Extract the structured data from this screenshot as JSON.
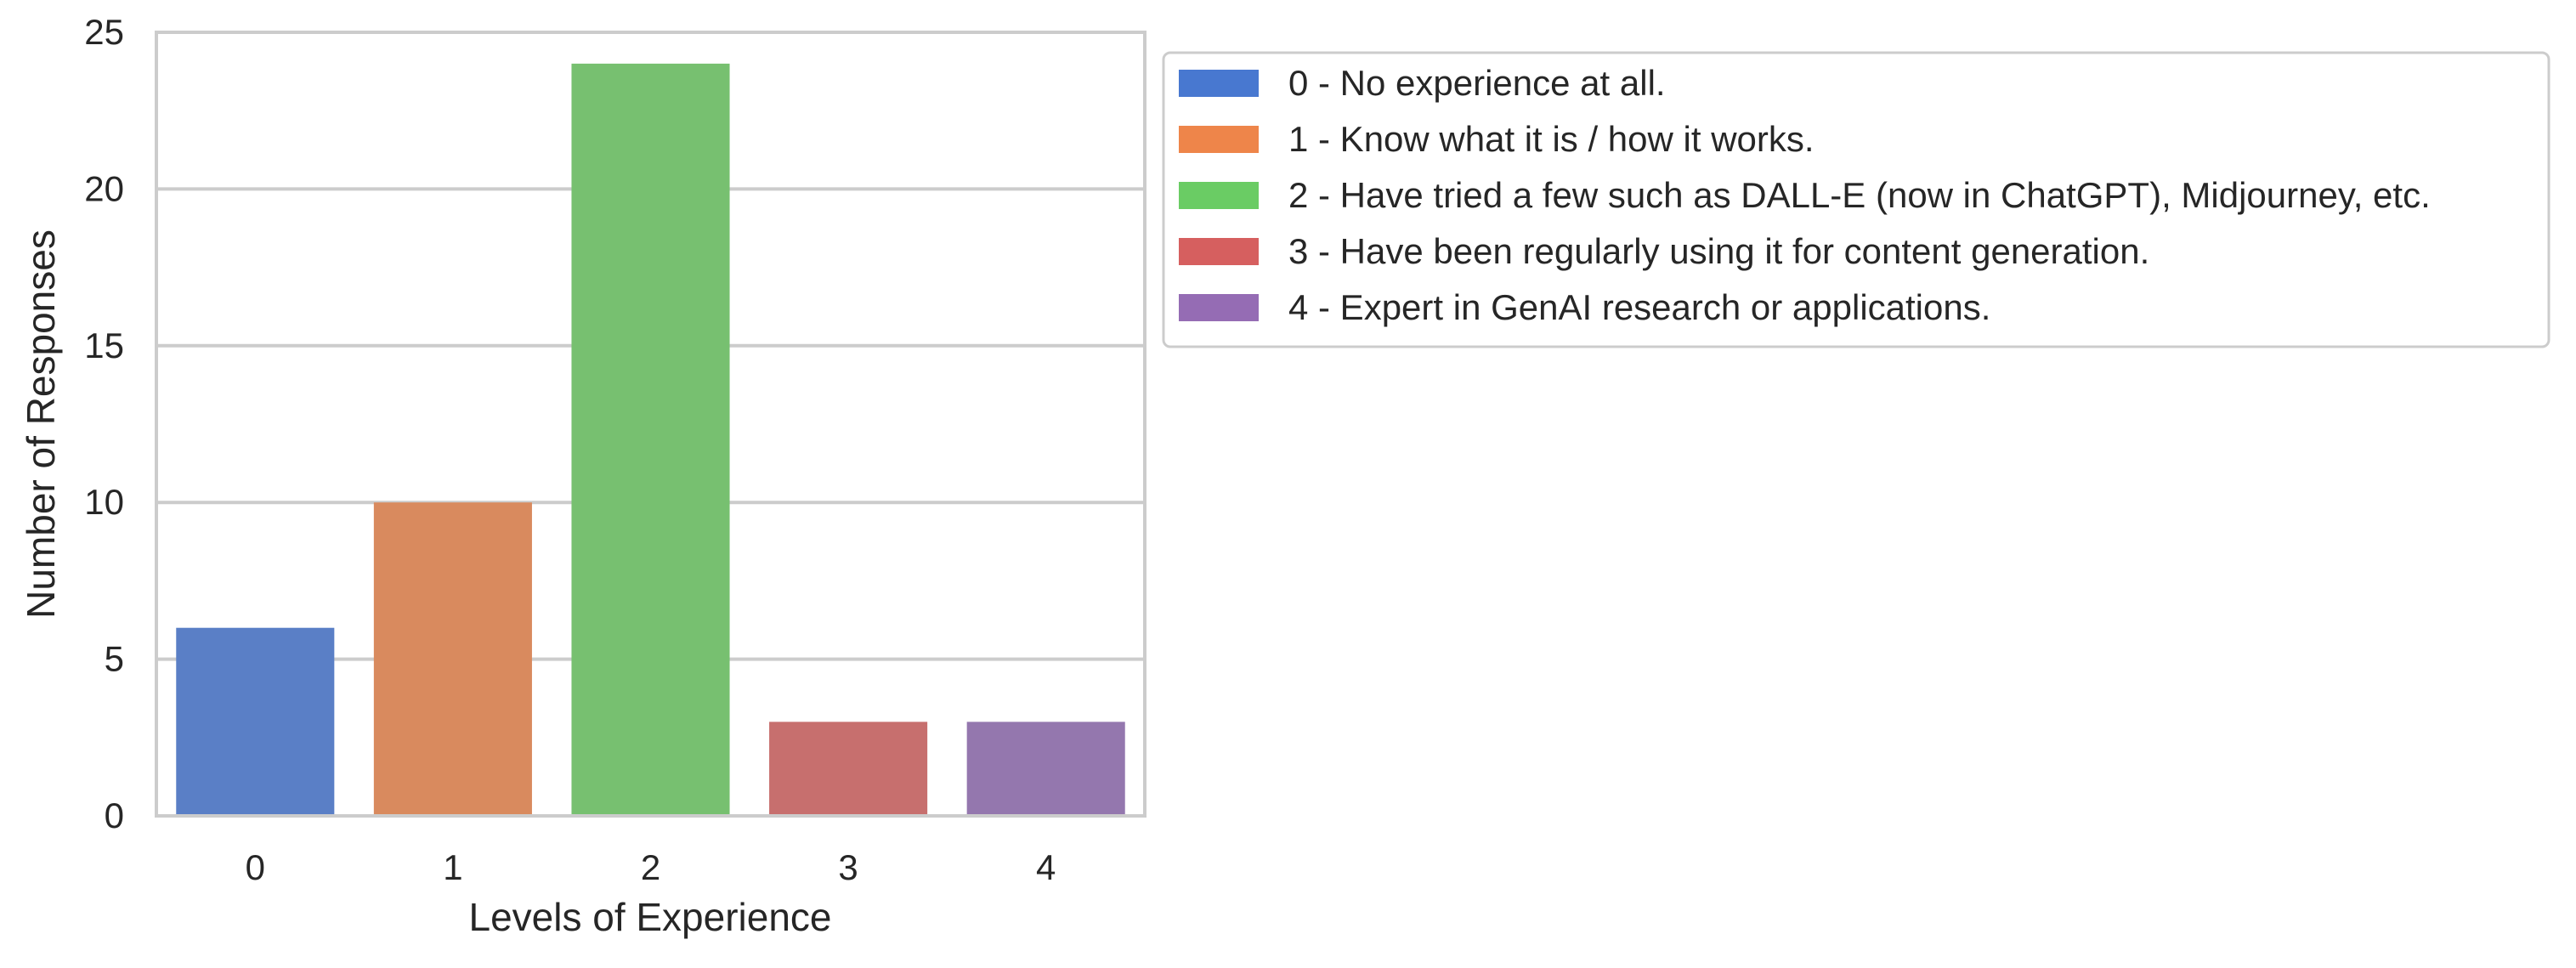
{
  "chart_data": {
    "type": "bar",
    "categories": [
      "0",
      "1",
      "2",
      "3",
      "4"
    ],
    "values": [
      6,
      10,
      24,
      3,
      3
    ],
    "colors": [
      "#5a7fc6",
      "#d98a5e",
      "#77c070",
      "#c76f6e",
      "#9477ae"
    ],
    "xlabel": "Levels of Experience",
    "ylabel": "Number of Responses",
    "ylim": [
      0,
      25
    ],
    "yticks": [
      "0",
      "5",
      "10",
      "15",
      "20",
      "25"
    ],
    "grid": "horizontal",
    "legend": {
      "placement": "outside-right-top",
      "entries": [
        {
          "label": "0 - No experience at all.",
          "color": "#4878d0"
        },
        {
          "label": "1 - Know what it is / how it works.",
          "color": "#ee854a"
        },
        {
          "label": "2 - Have tried a few such as DALL-E (now in ChatGPT), Midjourney, etc.",
          "color": "#6acc64"
        },
        {
          "label": "3 - Have been regularly using it for content generation.",
          "color": "#d65f5f"
        },
        {
          "label": "4 - Expert in GenAI research or applications.",
          "color": "#956cb4"
        }
      ]
    }
  }
}
